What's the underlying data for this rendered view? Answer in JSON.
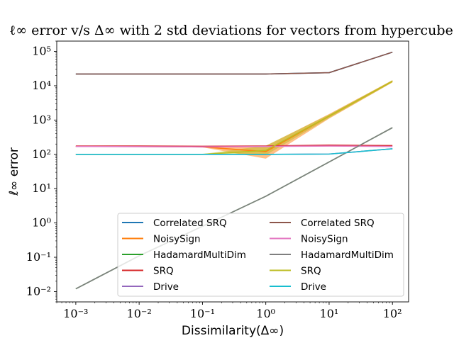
{
  "chart_data": {
    "type": "line",
    "title": "ℓ∞ error v/s Δ∞ with 2 std deviations for vectors from hypercube",
    "xlabel": "Dissimilarity(Δ∞)",
    "ylabel": "ℓ∞ error",
    "xscale": "log",
    "yscale": "log",
    "xlim": [
      0.0005,
      180
    ],
    "ylim": [
      0.005,
      200000
    ],
    "xticks": [
      {
        "value": 0.001,
        "label": "10⁻³"
      },
      {
        "value": 0.01,
        "label": "10⁻²"
      },
      {
        "value": 0.1,
        "label": "10⁻¹"
      },
      {
        "value": 1,
        "label": "10⁰"
      },
      {
        "value": 10,
        "label": "10¹"
      },
      {
        "value": 100,
        "label": "10²"
      }
    ],
    "yticks": [
      {
        "value": 0.01,
        "label": "10⁻²"
      },
      {
        "value": 0.1,
        "label": "10⁻¹"
      },
      {
        "value": 1,
        "label": "10⁰"
      },
      {
        "value": 10,
        "label": "10¹"
      },
      {
        "value": 100,
        "label": "10²"
      },
      {
        "value": 1000,
        "label": "10³"
      },
      {
        "value": 10000,
        "label": "10⁴"
      },
      {
        "value": 100000,
        "label": "10⁵"
      }
    ],
    "x": [
      0.001,
      0.01,
      0.1,
      1,
      10,
      100
    ],
    "series": [
      {
        "name": "Correlated SRQ",
        "color": "#1f77b4",
        "values": [
          22000,
          22000,
          22000,
          22000,
          24000,
          95000
        ]
      },
      {
        "name": "NoisySign",
        "color": "#ff7f0e",
        "values": [
          170,
          170,
          165,
          120,
          1300,
          13500
        ]
      },
      {
        "name": "HadamardMultiDim",
        "color": "#2ca02c",
        "values": [
          0.012,
          0.11,
          0.8,
          6,
          60,
          600
        ]
      },
      {
        "name": "SRQ",
        "color": "#d62728",
        "values": [
          175,
          175,
          172,
          175,
          185,
          180
        ]
      },
      {
        "name": "Drive",
        "color": "#9467bd",
        "values": [
          100,
          100,
          100,
          100,
          102,
          145
        ]
      },
      {
        "name": "Correlated SRQ",
        "color": "#8c564b",
        "values": [
          22000,
          22000,
          22000,
          22000,
          24000,
          95000
        ]
      },
      {
        "name": "NoisySign",
        "color": "#e377c2",
        "values": [
          170,
          168,
          165,
          170,
          175,
          170
        ]
      },
      {
        "name": "HadamardMultiDim",
        "color": "#7f7f7f",
        "values": [
          0.012,
          0.11,
          0.8,
          6,
          60,
          600
        ]
      },
      {
        "name": "SRQ",
        "color": "#bcbd22",
        "values": [
          100,
          100,
          100,
          130,
          1300,
          13500
        ]
      },
      {
        "name": "Drive",
        "color": "#17becf",
        "values": [
          100,
          100,
          100,
          100,
          102,
          145
        ]
      }
    ],
    "bands": [
      {
        "series": "NoisySign",
        "color": "#ff7f0e",
        "lower": [
          165,
          165,
          160,
          75,
          1100,
          12500
        ],
        "upper": [
          175,
          175,
          170,
          175,
          1500,
          14500
        ]
      },
      {
        "series": "SRQ",
        "color": "#bcbd22",
        "lower": [
          98,
          98,
          98,
          95,
          1150,
          12500
        ],
        "upper": [
          102,
          102,
          102,
          180,
          1450,
          14500
        ]
      }
    ],
    "legend": {
      "location": "lower-right",
      "columns": 2
    }
  }
}
